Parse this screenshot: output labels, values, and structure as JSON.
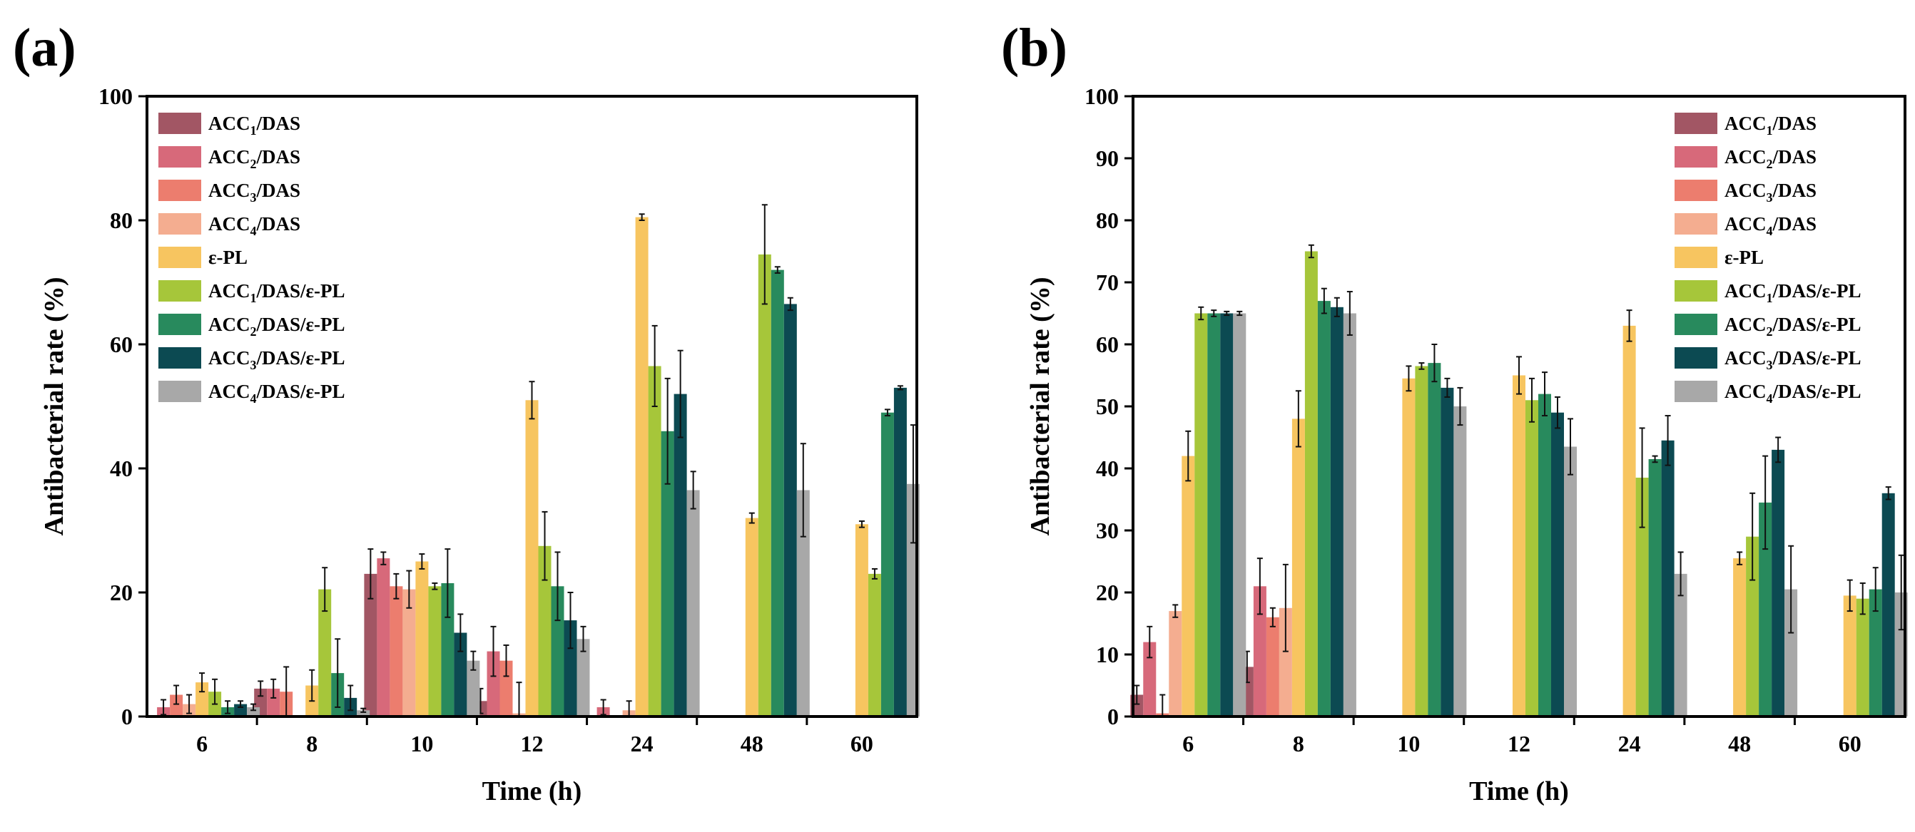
{
  "chart_data": [
    {
      "panel": "(a)",
      "type": "bar",
      "xlabel": "Time (h)",
      "ylabel": "Antibacterial rate (%)",
      "ylim": [
        0,
        100
      ],
      "yticks": [
        0,
        20,
        40,
        60,
        80,
        100
      ],
      "categories": [
        "6",
        "8",
        "10",
        "12",
        "24",
        "48",
        "60"
      ],
      "legend_position": "top-left",
      "series": [
        {
          "name": "ACC₁/DAS",
          "color": "#a25664",
          "values": [
            0,
            4.5,
            23,
            2.5,
            0,
            0,
            0
          ],
          "errors": [
            0,
            1.2,
            4,
            2,
            0,
            0,
            0
          ]
        },
        {
          "name": "ACC₂/DAS",
          "color": "#d7697a",
          "values": [
            1.5,
            4.5,
            25.5,
            10.5,
            1.5,
            0,
            0
          ],
          "errors": [
            1.2,
            1.5,
            1,
            4,
            1.2,
            0,
            0
          ]
        },
        {
          "name": "ACC₃/DAS",
          "color": "#ec7d6e",
          "values": [
            3.5,
            4,
            21,
            9,
            0,
            0,
            0
          ],
          "errors": [
            1.5,
            4,
            2,
            2.5,
            0,
            0,
            0
          ]
        },
        {
          "name": "ACC₄/DAS",
          "color": "#f4ad90",
          "values": [
            2,
            0,
            20.5,
            0.5,
            1,
            0,
            0
          ],
          "errors": [
            1.5,
            0,
            3,
            5,
            1.5,
            0,
            0
          ]
        },
        {
          "name": "ε-PL",
          "color": "#f7c560",
          "values": [
            5.5,
            5,
            25,
            51,
            80.5,
            32,
            31
          ],
          "errors": [
            1.5,
            2.5,
            1.2,
            3,
            0.5,
            0.8,
            0.5
          ]
        },
        {
          "name": "ACC₁/DAS/ε-PL",
          "color": "#a6c63a",
          "values": [
            4,
            20.5,
            21,
            27.5,
            56.5,
            74.5,
            23
          ],
          "errors": [
            2,
            3.5,
            0.5,
            5.5,
            6.5,
            8,
            0.8
          ]
        },
        {
          "name": "ACC₂/DAS/ε-PL",
          "color": "#288a5d",
          "values": [
            1.5,
            7,
            21.5,
            21,
            46,
            72,
            49
          ],
          "errors": [
            1,
            5.5,
            5.5,
            5.5,
            8.5,
            0.5,
            0.5
          ]
        },
        {
          "name": "ACC₃/DAS/ε-PL",
          "color": "#0c4a52",
          "values": [
            2,
            3,
            13.5,
            15.5,
            52,
            66.5,
            53
          ],
          "errors": [
            0.5,
            2,
            3,
            4.5,
            7,
            1,
            0.3
          ]
        },
        {
          "name": "ACC₄/DAS/ε-PL",
          "color": "#a8a8a8",
          "values": [
            1.5,
            1,
            9,
            12.5,
            36.5,
            36.5,
            37.5
          ],
          "errors": [
            0.5,
            0.3,
            1.5,
            2,
            3,
            7.5,
            9.5
          ]
        }
      ]
    },
    {
      "panel": "(b)",
      "type": "bar",
      "xlabel": "Time (h)",
      "ylabel": "Antibacterial rate (%)",
      "ylim": [
        0,
        100
      ],
      "yticks": [
        0,
        10,
        20,
        30,
        40,
        50,
        60,
        70,
        80,
        90,
        100
      ],
      "categories": [
        "6",
        "8",
        "10",
        "12",
        "24",
        "48",
        "60"
      ],
      "legend_position": "top-right",
      "series": [
        {
          "name": "ACC₁/DAS",
          "color": "#a25664",
          "values": [
            3.5,
            8,
            0,
            0,
            0,
            0,
            0
          ],
          "errors": [
            1.5,
            2.5,
            0,
            0,
            0,
            0,
            0
          ]
        },
        {
          "name": "ACC₂/DAS",
          "color": "#d7697a",
          "values": [
            12,
            21,
            0,
            0,
            0,
            0,
            0
          ],
          "errors": [
            2.5,
            4.5,
            0,
            0,
            0,
            0,
            0
          ]
        },
        {
          "name": "ACC₃/DAS",
          "color": "#ec7d6e",
          "values": [
            0.5,
            16,
            0,
            0,
            0,
            0,
            0
          ],
          "errors": [
            3,
            1.5,
            0,
            0,
            0,
            0,
            0
          ]
        },
        {
          "name": "ACC₄/DAS",
          "color": "#f4ad90",
          "values": [
            17,
            17.5,
            0,
            0,
            0,
            0,
            0
          ],
          "errors": [
            1,
            7,
            0,
            0,
            0,
            0,
            0
          ]
        },
        {
          "name": "ε-PL",
          "color": "#f7c560",
          "values": [
            42,
            48,
            54.5,
            55,
            63,
            25.5,
            19.5
          ],
          "errors": [
            4,
            4.5,
            2,
            3,
            2.5,
            1,
            2.5
          ]
        },
        {
          "name": "ACC₁/DAS/ε-PL",
          "color": "#a6c63a",
          "values": [
            65,
            75,
            56.5,
            51,
            38.5,
            29,
            19
          ],
          "errors": [
            1,
            1,
            0.5,
            3.5,
            8,
            7,
            2.5
          ]
        },
        {
          "name": "ACC₂/DAS/ε-PL",
          "color": "#288a5d",
          "values": [
            65,
            67,
            57,
            52,
            41.5,
            34.5,
            20.5
          ],
          "errors": [
            0.5,
            2,
            3,
            3.5,
            0.5,
            7.5,
            3.5
          ]
        },
        {
          "name": "ACC₃/DAS/ε-PL",
          "color": "#0c4a52",
          "values": [
            65,
            66,
            53,
            49,
            44.5,
            43,
            36
          ],
          "errors": [
            0.3,
            1.5,
            1.5,
            2.5,
            4,
            2,
            1
          ]
        },
        {
          "name": "ACC₄/DAS/ε-PL",
          "color": "#a8a8a8",
          "values": [
            65,
            65,
            50,
            43.5,
            23,
            20.5,
            20
          ],
          "errors": [
            0.3,
            3.5,
            3,
            4.5,
            3.5,
            7,
            6
          ]
        }
      ]
    }
  ]
}
